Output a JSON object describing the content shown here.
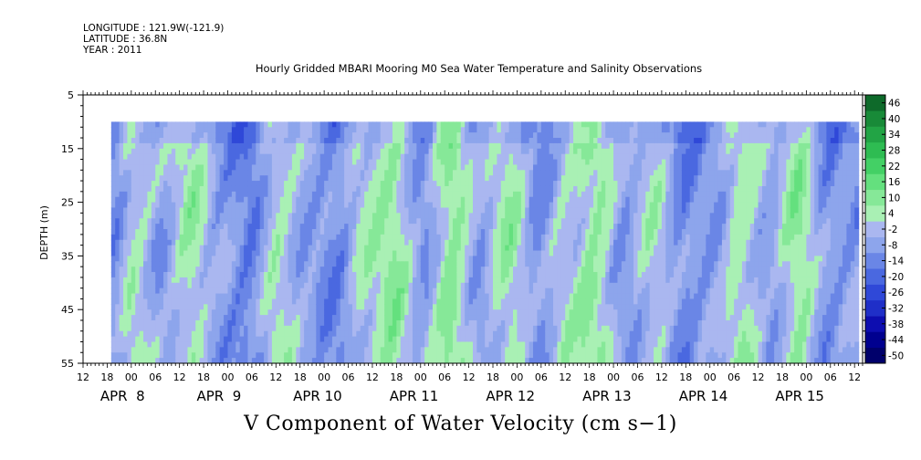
{
  "header": {
    "longitude": "LONGITUDE : 121.9W(-121.9)",
    "latitude": "LATITUDE : 36.8N",
    "year": "YEAR : 2011"
  },
  "chart_data": {
    "type": "heatmap",
    "title": "Hourly Gridded MBARI Mooring M0 Sea Water Temperature and Salinity Observations",
    "xlabel": "V Component of Water Velocity (cm s−1)",
    "ylabel": "DEPTH (m)",
    "y_axis": {
      "range": [
        5,
        55
      ],
      "reversed": true,
      "tick_labels": [
        "5",
        "15",
        "25",
        "35",
        "45",
        "55"
      ]
    },
    "x_axis": {
      "range_hours": [
        "APR 7 12:00",
        "APR 15 14:00"
      ],
      "hour_tick_labels": [
        "12",
        "18",
        "00",
        "06",
        "12",
        "18",
        "00",
        "06",
        "12",
        "18",
        "00",
        "06",
        "12",
        "18",
        "00",
        "06",
        "12",
        "18",
        "00",
        "06",
        "12",
        "18",
        "00",
        "06",
        "12",
        "18",
        "00",
        "06",
        "12",
        "18",
        "00",
        "06",
        "12"
      ],
      "date_labels": [
        "APR  8",
        "APR  9",
        "APR 10",
        "APR 11",
        "APR 12",
        "APR 13",
        "APR 14",
        "APR 15"
      ]
    },
    "data_extent": {
      "time_start": "APR 7 19:00",
      "time_end": "APR 15 13:00",
      "depth_top": 10,
      "depth_bottom": 55
    },
    "colorbar": {
      "levels": [
        -50,
        -44,
        -38,
        -32,
        -26,
        -20,
        -14,
        -8,
        -2,
        4,
        10,
        16,
        22,
        28,
        34,
        40,
        46
      ],
      "labels": [
        "46",
        "40",
        "34",
        "28",
        "22",
        "16",
        "10",
        "4",
        "-2",
        "-8",
        "-14",
        "-20",
        "-26",
        "-32",
        "-38",
        "-44",
        "-50"
      ]
    },
    "approx_pattern": {
      "description_note": "",
      "columns_days_from_apr8": [
        -0.2,
        0.0,
        0.3,
        0.6,
        0.9,
        1.2,
        1.5,
        1.8,
        2.1,
        2.4,
        2.7,
        3.0,
        3.3,
        3.6,
        3.9,
        4.2,
        4.5,
        4.8,
        5.1,
        5.4,
        5.7,
        6.0,
        6.3,
        6.6,
        6.9,
        7.2,
        7.4
      ],
      "mean_v_per_column": [
        -8,
        6,
        -4,
        8,
        -6,
        -12,
        6,
        -4,
        -10,
        4,
        10,
        -6,
        12,
        -4,
        8,
        -8,
        4,
        10,
        -6,
        4,
        -10,
        -6,
        8,
        -4,
        10,
        -8,
        -6
      ]
    }
  }
}
